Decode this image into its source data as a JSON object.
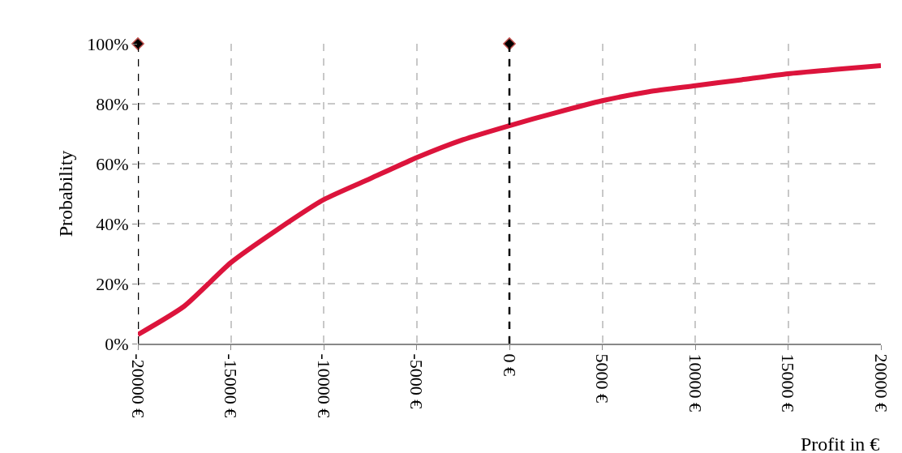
{
  "chart_data": {
    "type": "line",
    "xlabel": "Profit in €",
    "ylabel": "Probability",
    "series": [
      {
        "color": "#dc143c",
        "marker": "none",
        "line_style": "solid",
        "x": [
          -20000,
          -17500,
          -15000,
          -12500,
          -10000,
          -7500,
          -5000,
          -2500,
          0,
          2500,
          5000,
          7500,
          10000,
          12500,
          15000,
          17500,
          20000
        ],
        "values": [
          3,
          12.5,
          27,
          38,
          48,
          55,
          62,
          68,
          72.7,
          77,
          81,
          84,
          86,
          88,
          90,
          91.4,
          92.7
        ]
      },
      {
        "type": "scatter",
        "color": "#000000",
        "marker": "diamond",
        "x": [
          -20000,
          0
        ],
        "values": [
          100,
          100
        ]
      }
    ],
    "ref_lines": [
      {
        "axis": "x",
        "value": -20000,
        "color": "#000000",
        "line_style": "dashed"
      },
      {
        "axis": "x",
        "value": 0,
        "color": "#000000",
        "line_style": "dashed"
      }
    ],
    "xlim": [
      -20000,
      20000
    ],
    "xticks": [
      {
        "value": -20000,
        "label": "-20000 €"
      },
      {
        "value": -15000,
        "label": "-15000 €"
      },
      {
        "value": -10000,
        "label": "-10000 €"
      },
      {
        "value": -5000,
        "label": "-5000 €"
      },
      {
        "value": 0,
        "label": "0 €"
      },
      {
        "value": 5000,
        "label": "5000 €"
      },
      {
        "value": 10000,
        "label": "10000 €"
      },
      {
        "value": 15000,
        "label": "15000 €"
      },
      {
        "value": 20000,
        "label": "20000 €"
      }
    ],
    "ylim": [
      0,
      100
    ],
    "yticks": [
      {
        "value": 0,
        "label": "0%"
      },
      {
        "value": 20,
        "label": "20%"
      },
      {
        "value": 40,
        "label": "40%"
      },
      {
        "value": 60,
        "label": "60%"
      },
      {
        "value": 80,
        "label": "80%"
      },
      {
        "value": 100,
        "label": "100%"
      }
    ],
    "grid": true
  }
}
